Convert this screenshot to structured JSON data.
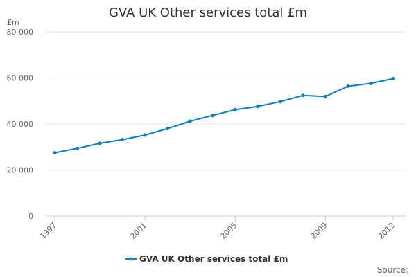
{
  "chart_data": {
    "type": "line",
    "title": "GVA UK Other services total £m",
    "ylabel": "£m",
    "xlabel": "",
    "x": [
      1997,
      1998,
      1999,
      2000,
      2001,
      2002,
      2003,
      2004,
      2005,
      2006,
      2007,
      2008,
      2009,
      2010,
      2011,
      2012
    ],
    "x_ticks": [
      "1997",
      "2001",
      "2005",
      "2009",
      "2012"
    ],
    "y_ticks": [
      "0",
      "20 000",
      "40 000",
      "60 000",
      "80 000"
    ],
    "ylim": [
      0,
      80000
    ],
    "grid": "horizontal",
    "legend_position": "bottom",
    "series": [
      {
        "name": "GVA UK Other services total £m",
        "color": "#0a7dc2",
        "values": [
          27500,
          29400,
          31600,
          33200,
          35200,
          38000,
          41200,
          43700,
          46200,
          47600,
          49700,
          52400,
          51900,
          56400,
          57600,
          59700
        ]
      }
    ]
  },
  "footer": {
    "source_label": "Source:"
  }
}
